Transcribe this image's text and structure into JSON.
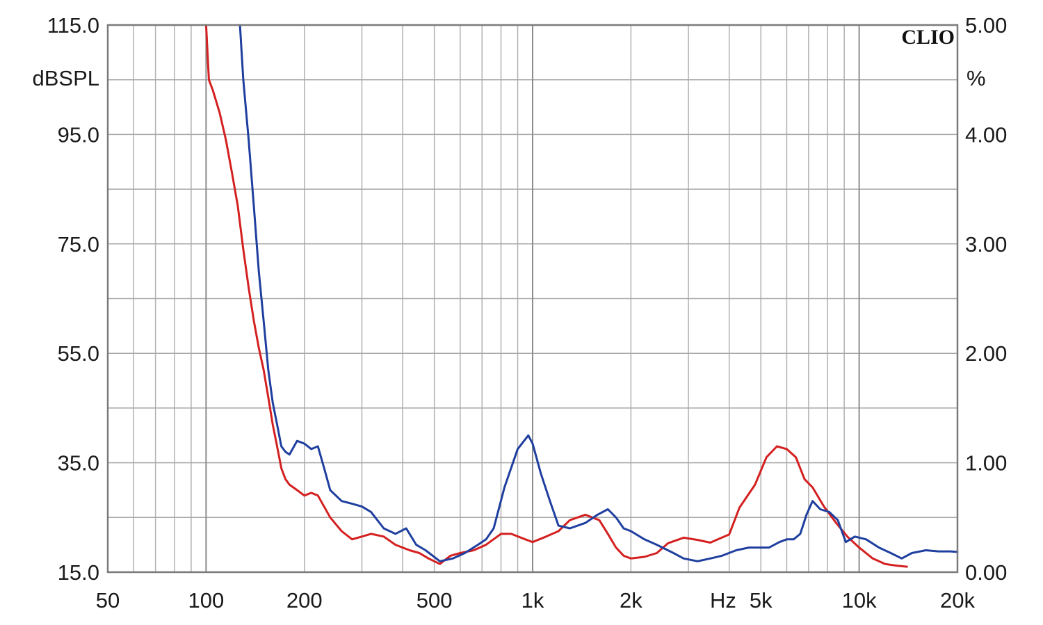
{
  "chart_data": {
    "type": "line",
    "brand": "CLIO",
    "xscale": "log",
    "xlim": [
      50,
      20000
    ],
    "ylim_left": [
      15,
      115
    ],
    "ylim_right": [
      0,
      5
    ],
    "left_unit": "dBSPL",
    "right_unit": "%",
    "x_unit": "Hz",
    "grid": true,
    "x_ticks": [
      {
        "value": 50,
        "label": "50"
      },
      {
        "value": 100,
        "label": "100"
      },
      {
        "value": 200,
        "label": "200"
      },
      {
        "value": 500,
        "label": "500"
      },
      {
        "value": 1000,
        "label": "1k"
      },
      {
        "value": 2000,
        "label": "2k"
      },
      {
        "value": 5000,
        "label": "5k"
      },
      {
        "value": 10000,
        "label": "10k"
      },
      {
        "value": 20000,
        "label": "20k"
      }
    ],
    "y_left_ticks": [
      {
        "value": 115,
        "label": "115.0"
      },
      {
        "value": 95,
        "label": "95.0"
      },
      {
        "value": 75,
        "label": "75.0"
      },
      {
        "value": 55,
        "label": "55.0"
      },
      {
        "value": 35,
        "label": "35.0"
      },
      {
        "value": 15,
        "label": "15.0"
      }
    ],
    "y_right_ticks": [
      {
        "value": 5,
        "label": "5.00"
      },
      {
        "value": 4,
        "label": "4.00"
      },
      {
        "value": 3,
        "label": "3.00"
      },
      {
        "value": 2,
        "label": "2.00"
      },
      {
        "value": 1,
        "label": "1.00"
      },
      {
        "value": 0,
        "label": "0.00"
      }
    ],
    "series": [
      {
        "color": "#d42020",
        "x": [
          100,
          102,
          105,
          110,
          115,
          120,
          125,
          130,
          135,
          140,
          145,
          150,
          155,
          160,
          165,
          170,
          175,
          180,
          190,
          200,
          210,
          220,
          240,
          260,
          280,
          300,
          320,
          350,
          380,
          420,
          450,
          480,
          520,
          560,
          600,
          660,
          720,
          800,
          860,
          950,
          1000,
          1100,
          1200,
          1300,
          1450,
          1600,
          1700,
          1800,
          1900,
          2000,
          2200,
          2400,
          2600,
          2900,
          3200,
          3500,
          4000,
          4300,
          4800,
          5200,
          5600,
          6000,
          6400,
          6800,
          7200,
          7800,
          8500,
          9200,
          10000,
          11000,
          12000,
          13000,
          14000
        ],
        "y": [
          115,
          105,
          103,
          99,
          94,
          88,
          82,
          74,
          67,
          61,
          56,
          52,
          47,
          42,
          38,
          34,
          32,
          31,
          30,
          29,
          29.5,
          29,
          25,
          22.5,
          21,
          21.5,
          22,
          21.5,
          20,
          19,
          18.5,
          17.5,
          16.5,
          18,
          18.5,
          19,
          20,
          22,
          22,
          21,
          20.5,
          21.5,
          22.5,
          24.5,
          25.5,
          24.5,
          22,
          19.5,
          18,
          17.5,
          17.8,
          18.5,
          20.3,
          21.3,
          20.9,
          20.4,
          21.9,
          26.8,
          31,
          36,
          38,
          37.5,
          36,
          32,
          30.5,
          27,
          24,
          21.5,
          19.5,
          17.5,
          16.5,
          16.2,
          16
        ]
      },
      {
        "color": "#1f3f9f",
        "x": [
          127,
          130,
          135,
          140,
          145,
          150,
          155,
          160,
          165,
          170,
          175,
          180,
          190,
          200,
          210,
          220,
          230,
          240,
          260,
          280,
          300,
          320,
          350,
          380,
          410,
          440,
          470,
          520,
          570,
          620,
          680,
          720,
          760,
          820,
          900,
          970,
          1000,
          1060,
          1130,
          1200,
          1300,
          1450,
          1580,
          1700,
          1800,
          1900,
          2000,
          2200,
          2400,
          2700,
          2900,
          3200,
          3500,
          3800,
          4200,
          4600,
          5000,
          5300,
          5700,
          6000,
          6300,
          6600,
          6900,
          7200,
          7600,
          8100,
          8600,
          9100,
          9700,
          10500,
          11500,
          12500,
          13500,
          14500,
          16000,
          17500,
          19000,
          20000
        ],
        "y": [
          115,
          105,
          94,
          82,
          70,
          61,
          52,
          46,
          42,
          38,
          37,
          36.5,
          39,
          38.5,
          37.5,
          38,
          34,
          30,
          28,
          27.5,
          27,
          26,
          23,
          22,
          23,
          20,
          19,
          17,
          17.5,
          18.5,
          20,
          21,
          23,
          30.5,
          37.5,
          40,
          38.5,
          33,
          28,
          23.5,
          23,
          24,
          25.5,
          26.5,
          25,
          23,
          22.5,
          21,
          20,
          18.5,
          17.5,
          17,
          17.5,
          18,
          19,
          19.5,
          19.5,
          19.5,
          20.5,
          21,
          21,
          22,
          25.5,
          28,
          26.5,
          26,
          24.5,
          20.5,
          21.5,
          21,
          19.5,
          18.5,
          17.5,
          18.5,
          19,
          18.8,
          18.8,
          18.7
        ]
      }
    ]
  }
}
